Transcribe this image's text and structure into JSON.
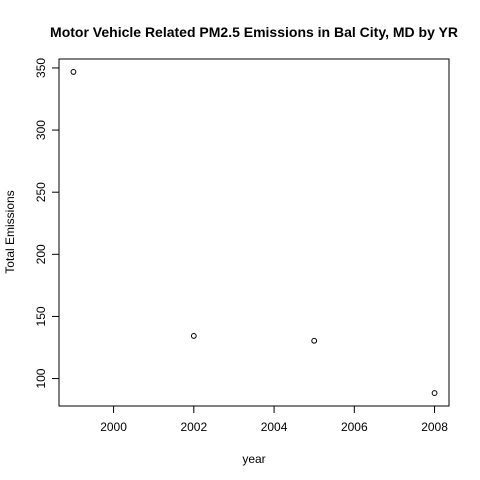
{
  "chart_data": {
    "type": "scatter",
    "title": "Motor Vehicle Related PM2.5 Emissions in Bal City, MD by YR",
    "xlabel": "year",
    "ylabel": "Total Emissions",
    "x": [
      1999,
      2002,
      2005,
      2008
    ],
    "y": [
      346.8,
      134.3,
      130.4,
      88.3
    ],
    "xlim": [
      1998.64,
      2008.36
    ],
    "ylim": [
      77.9,
      357.2
    ],
    "x_ticks": [
      2000,
      2002,
      2004,
      2006,
      2008
    ],
    "y_ticks": [
      100,
      150,
      200,
      250,
      300,
      350
    ],
    "grid": false,
    "marker": "open-circle",
    "point_color": "#000000"
  }
}
